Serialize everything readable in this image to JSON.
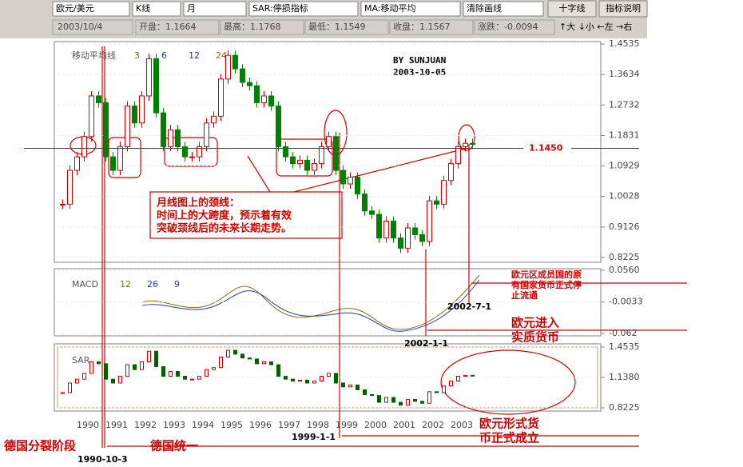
{
  "toolbar": {
    "symbol": "欧元/美元",
    "chart_kind": "K线",
    "period": "月",
    "indicator1": "SAR:停损指标",
    "indicator2": "MA:移动平均",
    "clear": "清除画线",
    "crosshair": "十字线",
    "help": "指标说明"
  },
  "infobar": {
    "date": "2003/10/4",
    "open": "开盘：1.1664",
    "high": "最高：1.1768",
    "low": "最低：1.1549",
    "close": "收盘：1.1567",
    "change": "涨跌：-0.0094",
    "zoom": "↑大 ↓小 ←左 →右"
  },
  "price_panel": {
    "legend": "移动平均线",
    "ma_periods": [
      3,
      6,
      12,
      24
    ],
    "author": "BY SUNJUAN",
    "author_date": "2003-10-05",
    "ylim": [
      0.8225,
      1.4535
    ],
    "yticks": [
      1.4535,
      1.3634,
      1.2732,
      1.1831,
      1.0929,
      1.0028,
      0.9126,
      0.8225
    ],
    "closes": [
      0.98,
      1.08,
      1.12,
      1.18,
      1.3,
      1.28,
      1.12,
      1.08,
      1.15,
      1.27,
      1.22,
      1.3,
      1.41,
      1.25,
      1.15,
      1.2,
      1.15,
      1.12,
      1.12,
      1.15,
      1.22,
      1.24,
      1.35,
      1.42,
      1.38,
      1.34,
      1.33,
      1.28,
      1.3,
      1.27,
      1.15,
      1.12,
      1.1,
      1.11,
      1.08,
      1.1,
      1.15,
      1.18,
      1.08,
      1.04,
      1.06,
      1.01,
      0.96,
      0.95,
      0.88,
      0.93,
      0.88,
      0.85,
      0.91,
      0.89,
      0.87,
      0.99,
      0.98,
      1.05,
      1.1,
      1.15,
      1.16,
      1.157
    ],
    "neckline": {
      "value": 1.145,
      "label": "1.1450"
    }
  },
  "macd_panel": {
    "label": "MACD",
    "params": [
      12,
      26,
      9
    ],
    "ylim": [
      -0.062,
      0.056
    ],
    "yticks": [
      {
        "value": 0.056,
        "label": "0.0560"
      },
      -0.0033,
      -0.062
    ]
  },
  "sar_panel": {
    "label": "SAR",
    "ylim": [
      0.8225,
      1.4535
    ],
    "yticks": [
      1.4535,
      {
        "value": 1.138,
        "label": "1.1380"
      },
      0.8225
    ]
  },
  "x_axis": {
    "years": [
      1990,
      1991,
      1992,
      1993,
      1994,
      1995,
      1996,
      1997,
      1998,
      1999,
      2000,
      2001,
      2002,
      2003
    ]
  },
  "annotations": {
    "callout": [
      "月线图上的颈线：",
      "时间上的大跨度，预示着有效",
      "突破颈线后的未来长期走势。"
    ],
    "circulation": [
      "欧元区成员国的原",
      "有国家货币正式停",
      "止流通"
    ],
    "date_2002_7": "2002-7-1",
    "real_currency": [
      "欧元进入",
      "实质货币"
    ],
    "date_2002_1": "2002-1-1",
    "formal": [
      "欧元形式货",
      "币正式成立"
    ],
    "date_1999": "1999-1-1",
    "split": "德国分裂阶段",
    "unification": "德国统一",
    "date_1990": "1990-10-3"
  }
}
